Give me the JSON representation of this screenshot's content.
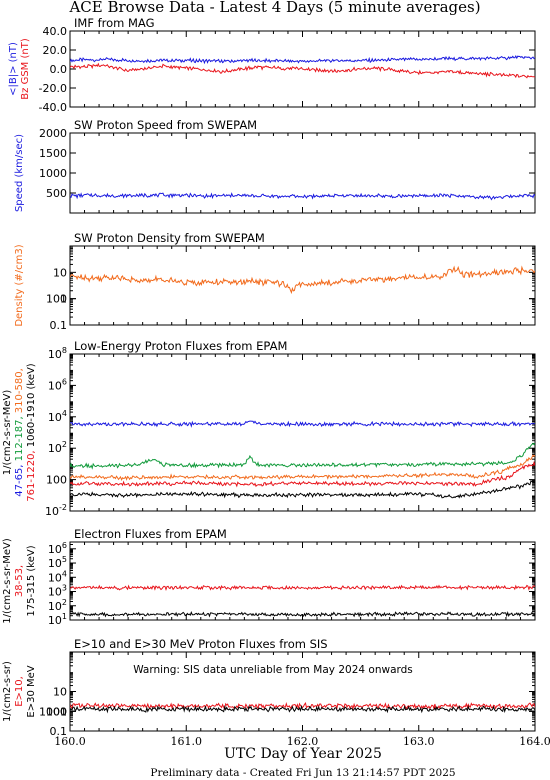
{
  "header": {
    "title": "ACE Browse Data - Latest 4 Days (5 minute averages)"
  },
  "footer": {
    "note": "Preliminary data - Created Fri Jun 13 21:14:57 PDT 2025"
  },
  "colors": {
    "blue": "#1a1adf",
    "red": "#e8141b",
    "orange": "#f26b1d",
    "green": "#109a3a",
    "black": "#000000"
  },
  "chart_data": [
    {
      "type": "line",
      "title": "IMF from MAG",
      "ylabel_parts": [
        {
          "text": "<|B|> (nT)",
          "color": "blue"
        },
        {
          "text": "Bz GSM (nT)",
          "color": "red"
        }
      ],
      "ytick_labels": [
        "-40.0",
        "-20.0",
        "0.0",
        "20.0",
        "40.0"
      ],
      "ylim": [
        -40,
        40
      ],
      "yscale": "linear",
      "x_range": [
        160.0,
        164.0
      ],
      "series": [
        {
          "color": "blue",
          "points": [
            [
              160.0,
              9
            ],
            [
              160.3,
              10
            ],
            [
              160.6,
              9
            ],
            [
              161.0,
              9
            ],
            [
              161.3,
              8
            ],
            [
              161.6,
              9
            ],
            [
              162.0,
              8
            ],
            [
              162.3,
              9
            ],
            [
              162.6,
              9
            ],
            [
              163.0,
              10
            ],
            [
              163.3,
              11
            ],
            [
              163.6,
              11
            ],
            [
              163.8,
              12
            ],
            [
              164.0,
              12
            ]
          ]
        },
        {
          "color": "red",
          "points": [
            [
              160.0,
              2
            ],
            [
              160.3,
              4
            ],
            [
              160.5,
              -2
            ],
            [
              160.8,
              3
            ],
            [
              161.0,
              1
            ],
            [
              161.3,
              -3
            ],
            [
              161.6,
              2
            ],
            [
              162.0,
              0
            ],
            [
              162.3,
              -2
            ],
            [
              162.6,
              1
            ],
            [
              163.0,
              -4
            ],
            [
              163.3,
              -3
            ],
            [
              163.5,
              -5
            ],
            [
              163.8,
              -7
            ],
            [
              164.0,
              -8
            ]
          ]
        }
      ]
    },
    {
      "type": "line",
      "title": "SW Proton Speed from SWEPAM",
      "ylabel_parts": [
        {
          "text": "Speed (km/sec)",
          "color": "blue"
        }
      ],
      "ytick_labels": [
        "500",
        "1000",
        "1500",
        "2000"
      ],
      "ylim": [
        0,
        2000
      ],
      "yscale": "linear",
      "x_range": [
        160.0,
        164.0
      ],
      "series": [
        {
          "color": "blue",
          "points": [
            [
              160.0,
              430
            ],
            [
              160.2,
              445
            ],
            [
              160.4,
              425
            ],
            [
              160.6,
              440
            ],
            [
              160.8,
              450
            ],
            [
              161.0,
              435
            ],
            [
              161.2,
              430
            ],
            [
              161.4,
              440
            ],
            [
              161.6,
              425
            ],
            [
              161.8,
              420
            ],
            [
              162.0,
              410
            ],
            [
              162.2,
              430
            ],
            [
              162.4,
              440
            ],
            [
              162.6,
              425
            ],
            [
              162.8,
              415
            ],
            [
              163.0,
              430
            ],
            [
              163.2,
              440
            ],
            [
              163.4,
              420
            ],
            [
              163.6,
              380
            ],
            [
              163.8,
              410
            ],
            [
              163.9,
              450
            ],
            [
              164.0,
              430
            ]
          ]
        }
      ]
    },
    {
      "type": "line",
      "title": "SW Proton Density from SWEPAM",
      "ylabel_parts": [
        {
          "text": "Density (#/cm3)",
          "color": "orange"
        }
      ],
      "ytick_labels": [
        "0.1",
        "1",
        "10",
        "100"
      ],
      "ylim": [
        0.1,
        100
      ],
      "yscale": "log",
      "x_range": [
        160.0,
        164.0
      ],
      "series": [
        {
          "color": "orange",
          "points": [
            [
              160.0,
              7
            ],
            [
              160.2,
              6
            ],
            [
              160.4,
              6.5
            ],
            [
              160.6,
              4.5
            ],
            [
              160.8,
              5.5
            ],
            [
              161.0,
              4
            ],
            [
              161.2,
              4.5
            ],
            [
              161.4,
              4
            ],
            [
              161.6,
              4.5
            ],
            [
              161.8,
              4
            ],
            [
              161.9,
              2
            ],
            [
              162.0,
              3.5
            ],
            [
              162.2,
              4
            ],
            [
              162.4,
              4.5
            ],
            [
              162.6,
              5
            ],
            [
              162.8,
              6
            ],
            [
              163.0,
              7
            ],
            [
              163.2,
              6
            ],
            [
              163.3,
              15
            ],
            [
              163.4,
              8
            ],
            [
              163.6,
              9
            ],
            [
              163.8,
              11
            ],
            [
              164.0,
              12
            ]
          ]
        }
      ]
    },
    {
      "type": "line",
      "title": "Low-Energy Proton Fluxes from EPAM",
      "ylabel_parts": [
        {
          "text": "1/(cm2-s-sr-MeV)",
          "color": "black"
        },
        {
          "text": "47-65, ",
          "color": "blue"
        },
        {
          "text": "112-187, ",
          "color": "green"
        },
        {
          "text": "310-580,",
          "color": "orange"
        },
        {
          "text": "761-1220, ",
          "color": "red"
        },
        {
          "text": "1060-1910 (keV)",
          "color": "black"
        }
      ],
      "ytick_labels": [
        "10-2",
        "100",
        "102",
        "104",
        "106",
        "108"
      ],
      "ylim": [
        0.01,
        100000000
      ],
      "yscale": "log",
      "x_range": [
        160.0,
        164.0
      ],
      "series": [
        {
          "color": "blue",
          "points": [
            [
              160.0,
              3500
            ],
            [
              160.5,
              3400
            ],
            [
              161.0,
              3500
            ],
            [
              161.5,
              3400
            ],
            [
              161.55,
              6000
            ],
            [
              161.6,
              3500
            ],
            [
              162.0,
              3400
            ],
            [
              162.5,
              3500
            ],
            [
              163.0,
              3400
            ],
            [
              163.5,
              3500
            ],
            [
              164.0,
              3500
            ]
          ]
        },
        {
          "color": "green",
          "points": [
            [
              160.0,
              8
            ],
            [
              160.3,
              7
            ],
            [
              160.6,
              9
            ],
            [
              160.7,
              20
            ],
            [
              160.8,
              9
            ],
            [
              161.0,
              8
            ],
            [
              161.5,
              9
            ],
            [
              161.55,
              25
            ],
            [
              161.6,
              9
            ],
            [
              162.0,
              8
            ],
            [
              162.5,
              9
            ],
            [
              163.0,
              9
            ],
            [
              163.5,
              10
            ],
            [
              163.8,
              12
            ],
            [
              163.9,
              40
            ],
            [
              164.0,
              200
            ]
          ]
        },
        {
          "color": "orange",
          "points": [
            [
              160.0,
              1.5
            ],
            [
              160.5,
              1.3
            ],
            [
              161.0,
              1.5
            ],
            [
              161.5,
              1.4
            ],
            [
              162.0,
              1.5
            ],
            [
              162.5,
              1.6
            ],
            [
              163.0,
              1.8
            ],
            [
              163.3,
              2.2
            ],
            [
              163.5,
              1.5
            ],
            [
              163.7,
              3
            ],
            [
              163.9,
              10
            ],
            [
              164.0,
              30
            ]
          ]
        },
        {
          "color": "red",
          "points": [
            [
              160.0,
              0.6
            ],
            [
              160.5,
              0.5
            ],
            [
              161.0,
              0.6
            ],
            [
              161.5,
              0.5
            ],
            [
              162.0,
              0.6
            ],
            [
              162.5,
              0.55
            ],
            [
              163.0,
              0.6
            ],
            [
              163.5,
              0.5
            ],
            [
              163.8,
              1.5
            ],
            [
              164.0,
              10
            ]
          ]
        },
        {
          "color": "black",
          "points": [
            [
              160.0,
              0.12
            ],
            [
              160.5,
              0.1
            ],
            [
              161.0,
              0.12
            ],
            [
              161.5,
              0.1
            ],
            [
              162.0,
              0.11
            ],
            [
              162.5,
              0.1
            ],
            [
              163.0,
              0.12
            ],
            [
              163.3,
              0.08
            ],
            [
              163.6,
              0.15
            ],
            [
              163.9,
              0.4
            ],
            [
              164.0,
              0.8
            ]
          ]
        }
      ]
    },
    {
      "type": "line",
      "title": "Electron Fluxes from EPAM",
      "ylabel_parts": [
        {
          "text": "1/(cm2-s-sr-MeV)",
          "color": "black"
        },
        {
          "text": "38-53, ",
          "color": "red"
        },
        {
          "text": "175-315 (keV)",
          "color": "black"
        }
      ],
      "ytick_labels": [
        "101",
        "102",
        "103",
        "104",
        "105",
        "106"
      ],
      "ylim": [
        10,
        3000000
      ],
      "yscale": "log",
      "x_range": [
        160.0,
        164.0
      ],
      "series": [
        {
          "color": "red",
          "points": [
            [
              160.0,
              1900
            ],
            [
              160.5,
              1800
            ],
            [
              161.0,
              1900
            ],
            [
              161.5,
              1800
            ],
            [
              162.0,
              1900
            ],
            [
              162.5,
              1900
            ],
            [
              163.0,
              2000
            ],
            [
              163.5,
              1900
            ],
            [
              164.0,
              2000
            ]
          ]
        },
        {
          "color": "black",
          "points": [
            [
              160.0,
              26
            ],
            [
              160.5,
              24
            ],
            [
              161.0,
              26
            ],
            [
              161.5,
              25
            ],
            [
              162.0,
              24
            ],
            [
              162.5,
              25
            ],
            [
              163.0,
              27
            ],
            [
              163.5,
              25
            ],
            [
              164.0,
              26
            ]
          ]
        }
      ]
    },
    {
      "type": "line",
      "title": "E>10 and E>30 MeV Proton Fluxes from SIS",
      "ylabel_parts": [
        {
          "text": "1/(cm2-s-sr)",
          "color": "black"
        },
        {
          "text": "E>10, ",
          "color": "red"
        },
        {
          "text": "E>30 MeV",
          "color": "black"
        }
      ],
      "ytick_labels": [
        "0.1",
        "1",
        "10",
        "100",
        "1000"
      ],
      "ylim": [
        0.1,
        1000
      ],
      "yscale": "log",
      "x_range": [
        160.0,
        164.0
      ],
      "annotation": "Warning: SIS data unreliable from May 2024 onwards",
      "series": [
        {
          "color": "red",
          "points": [
            [
              160.0,
              1.9
            ],
            [
              161.0,
              1.8
            ],
            [
              162.0,
              1.9
            ],
            [
              163.0,
              1.8
            ],
            [
              164.0,
              1.9
            ]
          ]
        },
        {
          "color": "black",
          "points": [
            [
              160.0,
              1.3
            ],
            [
              161.0,
              1.25
            ],
            [
              162.0,
              1.3
            ],
            [
              163.0,
              1.25
            ],
            [
              164.0,
              1.3
            ]
          ]
        }
      ]
    }
  ],
  "x_axis": {
    "tick_labels": [
      "160.0",
      "161.0",
      "162.0",
      "163.0",
      "164.0"
    ],
    "label": "UTC Day of Year 2025"
  }
}
